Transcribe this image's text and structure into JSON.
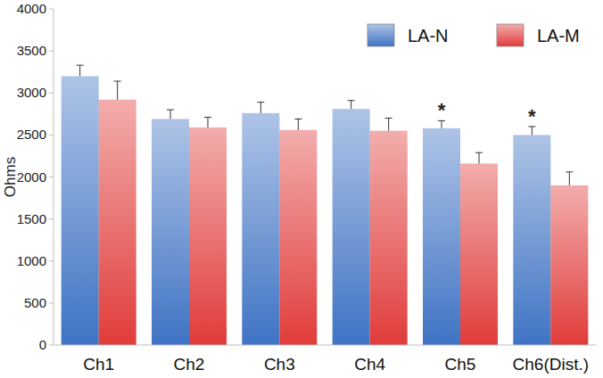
{
  "chart_data": {
    "type": "bar",
    "y_label": "Ohms",
    "categories": [
      "Ch1",
      "Ch2",
      "Ch3",
      "Ch4",
      "Ch5",
      "Ch6(Dist.)"
    ],
    "series": [
      {
        "name": "LA-N",
        "color": "#3f73c4",
        "values": [
          3200,
          2690,
          2760,
          2810,
          2580,
          2500
        ],
        "errors": [
          130,
          110,
          130,
          100,
          90,
          100
        ]
      },
      {
        "name": "LA-M",
        "color": "#e03c3a",
        "values": [
          2920,
          2590,
          2560,
          2550,
          2160,
          1900
        ],
        "errors": [
          220,
          120,
          130,
          150,
          130,
          160
        ]
      }
    ],
    "ylim": [
      0,
      4000
    ],
    "yticks": [
      0,
      500,
      1000,
      1500,
      2000,
      2500,
      3000,
      3500,
      4000
    ],
    "grid": false,
    "legend": "upper right",
    "annotations": [
      {
        "text": "*",
        "x": "Ch5",
        "series": "LA-N"
      },
      {
        "text": "*",
        "x": "Ch6(Dist.)",
        "series": "LA-N"
      }
    ]
  }
}
